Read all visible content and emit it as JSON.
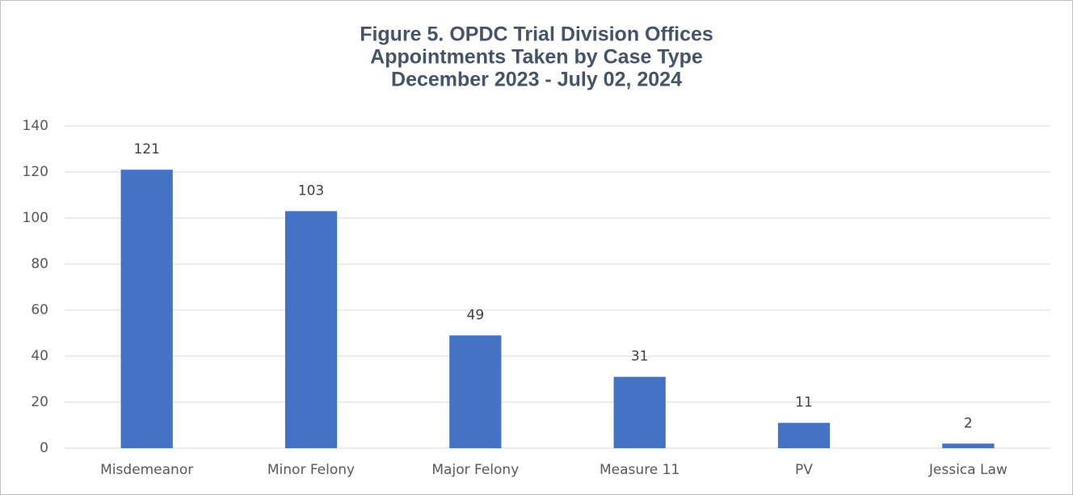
{
  "chart_data": {
    "type": "bar",
    "title": [
      "Figure 5. OPDC Trial Division Offices",
      "Appointments Taken by Case Type",
      "December 2023 - July 02, 2024"
    ],
    "categories": [
      "Misdemeanor",
      "Minor Felony",
      "Major Felony",
      "Measure 11",
      "PV",
      "Jessica Law"
    ],
    "values": [
      121,
      103,
      49,
      31,
      11,
      2
    ],
    "color": "#4472c4",
    "ylim": [
      0,
      140
    ],
    "yticks": [
      0,
      20,
      40,
      60,
      80,
      100,
      120,
      140
    ],
    "grid": true,
    "data_labels": true
  }
}
